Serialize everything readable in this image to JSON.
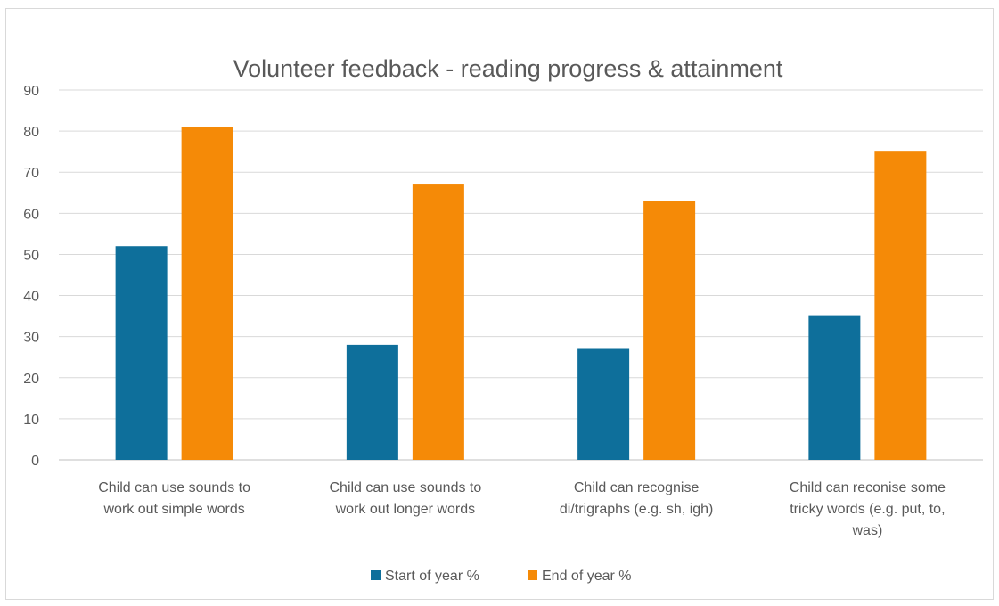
{
  "chart_data": {
    "type": "bar",
    "title": "Volunteer feedback - reading progress & attainment",
    "xlabel": "",
    "ylabel": "",
    "ylim": [
      0,
      90
    ],
    "yticks": [
      0,
      10,
      20,
      30,
      40,
      50,
      60,
      70,
      80,
      90
    ],
    "grid": true,
    "legend_position": "bottom",
    "categories": [
      [
        "Child can use sounds to",
        "work out simple words"
      ],
      [
        "Child can use sounds to",
        "work out longer words"
      ],
      [
        "Child can recognise",
        "di/trigraphs (e.g. sh, igh)"
      ],
      [
        "Child can reconise some",
        "tricky words (e.g. put, to,",
        "was)"
      ]
    ],
    "series": [
      {
        "name": "Start of year %",
        "color": "#0e6f9b",
        "values": [
          52,
          28,
          27,
          35
        ]
      },
      {
        "name": "End of year %",
        "color": "#f58a07",
        "values": [
          81,
          67,
          63,
          75
        ]
      }
    ]
  }
}
